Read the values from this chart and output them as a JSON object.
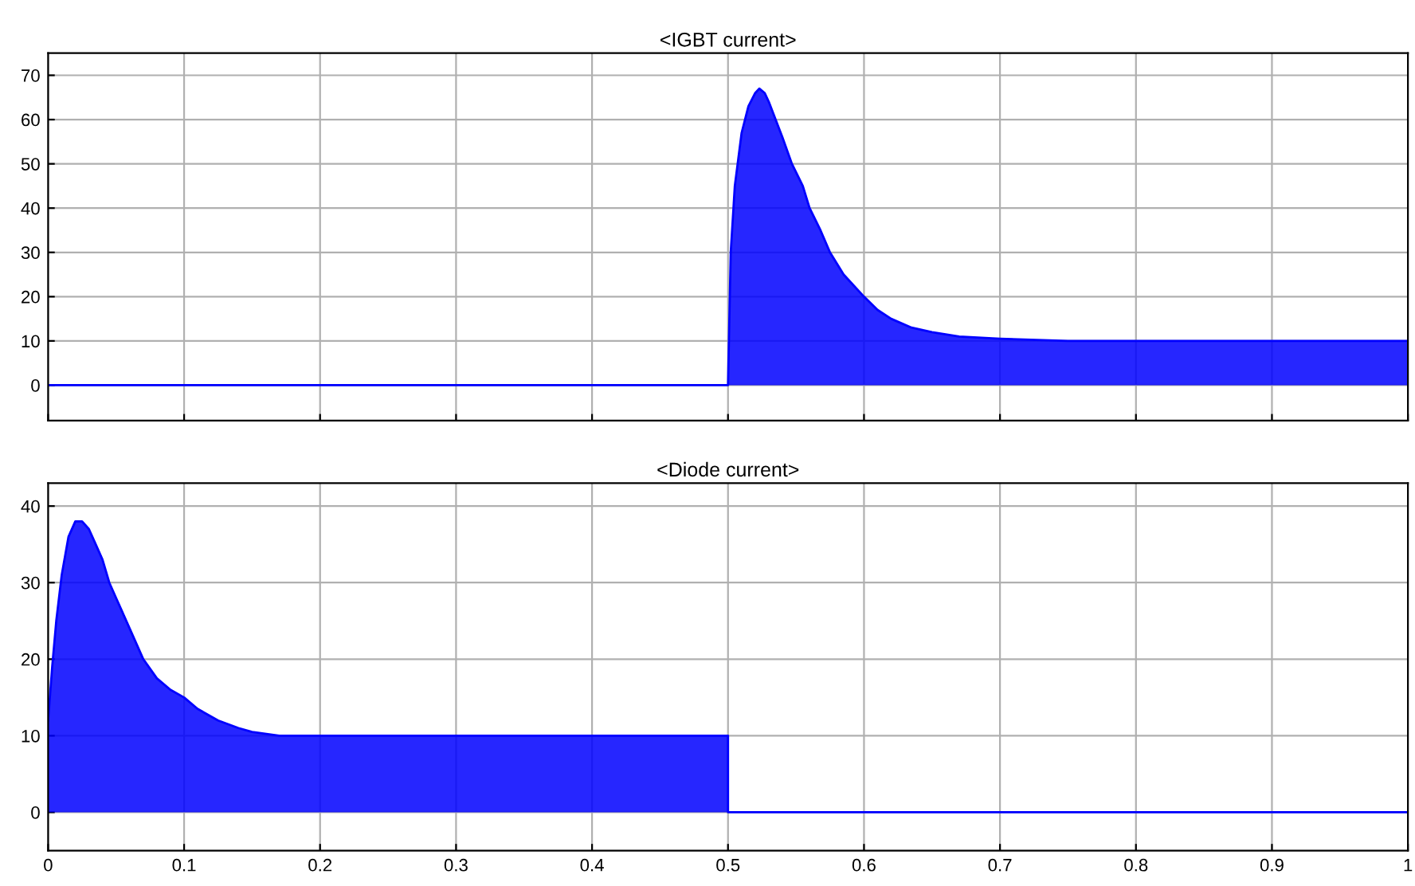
{
  "chart_data": [
    {
      "type": "area",
      "title": "<IGBT current>",
      "tick_labels": "y",
      "grid": true,
      "legend": false,
      "xlim": [
        0,
        1
      ],
      "xticks": [
        0,
        0.1,
        0.2,
        0.3,
        0.4,
        0.5,
        0.6,
        0.7,
        0.8,
        0.9,
        1
      ],
      "ylim": [
        -8,
        75
      ],
      "yticks": [
        0,
        10,
        20,
        30,
        40,
        50,
        60,
        70
      ],
      "series": [
        {
          "color": "#0000ff",
          "x": [
            0,
            0.5,
            0.502,
            0.505,
            0.51,
            0.515,
            0.52,
            0.523,
            0.527,
            0.53,
            0.535,
            0.54,
            0.547,
            0.555,
            0.56,
            0.568,
            0.575,
            0.585,
            0.6,
            0.61,
            0.62,
            0.635,
            0.65,
            0.67,
            0.7,
            0.75,
            0.8,
            0.9,
            1
          ],
          "values": [
            0,
            0,
            30,
            45,
            57,
            63,
            66,
            67,
            66,
            64,
            60,
            56,
            50,
            45,
            40,
            35,
            30,
            25,
            20,
            17,
            15,
            13,
            12,
            11,
            10.5,
            10,
            10,
            10,
            10
          ]
        }
      ]
    },
    {
      "type": "area",
      "title": "<Diode current>",
      "grid": true,
      "legend": false,
      "xlim": [
        0,
        1
      ],
      "xticks": [
        0,
        0.1,
        0.2,
        0.3,
        0.4,
        0.5,
        0.6,
        0.7,
        0.8,
        0.9,
        1
      ],
      "ylim": [
        -5,
        43
      ],
      "yticks": [
        0,
        10,
        20,
        30,
        40
      ],
      "series": [
        {
          "color": "#0000ff",
          "x": [
            0,
            0.003,
            0.006,
            0.01,
            0.015,
            0.02,
            0.025,
            0.03,
            0.035,
            0.04,
            0.045,
            0.05,
            0.06,
            0.07,
            0.08,
            0.09,
            0.1,
            0.11,
            0.125,
            0.14,
            0.15,
            0.17,
            0.2,
            0.3,
            0.4,
            0.5,
            0.5,
            0.6,
            0.8,
            1
          ],
          "values": [
            12,
            19,
            25,
            31,
            36,
            38,
            38,
            37,
            35,
            33,
            30,
            28,
            24,
            20,
            17.5,
            16,
            15,
            13.5,
            12,
            11,
            10.5,
            10,
            10,
            10,
            10,
            10,
            0,
            0,
            0,
            0
          ]
        }
      ]
    }
  ]
}
